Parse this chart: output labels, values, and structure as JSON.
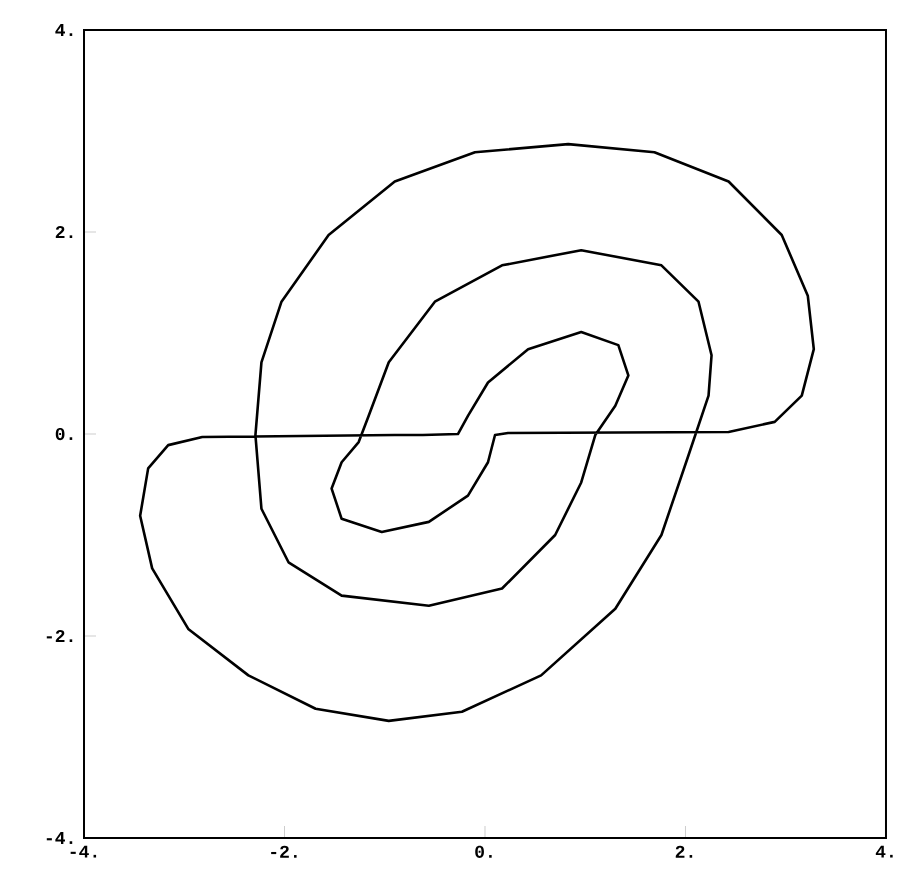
{
  "chart_data": {
    "type": "line",
    "marker": "none",
    "line_style": "solid",
    "grid": false,
    "xlim": [
      -4,
      4
    ],
    "ylim": [
      -4,
      4
    ],
    "xticks": [
      {
        "value": -4,
        "label": "-4."
      },
      {
        "value": -2,
        "label": "-2."
      },
      {
        "value": 0,
        "label": "0."
      },
      {
        "value": 2,
        "label": "2."
      },
      {
        "value": 4,
        "label": "4."
      }
    ],
    "yticks": [
      {
        "value": -4,
        "label": "-4."
      },
      {
        "value": -2,
        "label": "-2."
      },
      {
        "value": 0,
        "label": "0."
      },
      {
        "value": 2,
        "label": "2."
      },
      {
        "value": 4,
        "label": "4."
      }
    ],
    "series": [
      {
        "color": "#000000",
        "x": [
          -0.58,
          -0.9,
          -2.82,
          -3.16,
          -3.36,
          -3.44,
          -3.32,
          -2.96,
          -2.36,
          -1.69,
          -0.96,
          -0.23,
          0.56,
          1.3,
          1.76,
          2.03,
          2.23,
          2.26,
          2.13,
          1.76,
          0.96,
          0.17,
          -0.5,
          -0.96,
          -1.16,
          -1.26,
          -1.43,
          -1.53,
          -1.43,
          -1.03,
          -0.56,
          -0.17,
          0.03,
          0.1,
          0.23,
          2.43,
          2.89,
          3.16,
          3.28,
          3.22,
          2.96,
          2.43,
          1.69,
          0.83,
          -0.1,
          -0.9,
          -1.56,
          -2.03,
          -2.23,
          -2.29,
          -2.23,
          -1.96,
          -1.43,
          -0.56,
          0.17,
          0.7,
          0.96,
          1.1,
          1.3,
          1.43,
          1.33,
          0.96,
          0.43,
          0.03,
          -0.17,
          -0.27,
          -0.62
        ],
        "values": [
          -0.01,
          -0.01,
          -0.03,
          -0.11,
          -0.34,
          -0.81,
          -1.33,
          -1.93,
          -2.39,
          -2.72,
          -2.84,
          -2.75,
          -2.39,
          -1.73,
          -1.0,
          -0.21,
          0.38,
          0.78,
          1.31,
          1.67,
          1.82,
          1.67,
          1.31,
          0.71,
          0.18,
          -0.08,
          -0.28,
          -0.54,
          -0.84,
          -0.97,
          -0.87,
          -0.61,
          -0.28,
          -0.01,
          0.01,
          0.02,
          0.12,
          0.38,
          0.84,
          1.37,
          1.97,
          2.5,
          2.79,
          2.87,
          2.79,
          2.5,
          1.97,
          1.31,
          0.71,
          -0.01,
          -0.74,
          -1.27,
          -1.6,
          -1.7,
          -1.53,
          -1.0,
          -0.48,
          -0.01,
          0.28,
          0.58,
          0.88,
          1.01,
          0.84,
          0.51,
          0.18,
          0.0,
          -0.01
        ]
      }
    ]
  }
}
